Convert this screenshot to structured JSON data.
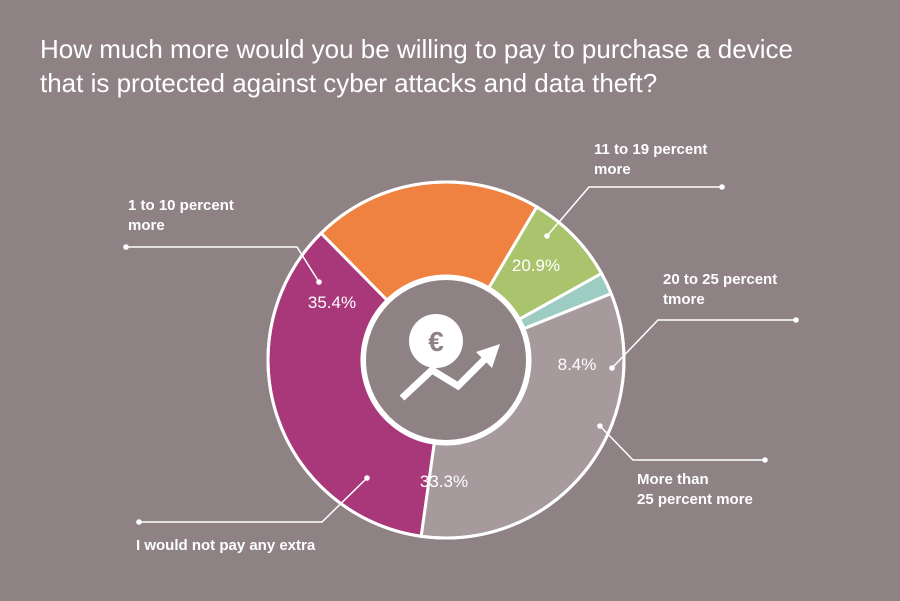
{
  "title_lines": [
    "How much more would you be willing to pay to purchase a device",
    "that is protected against cyber attacks and data theft?"
  ],
  "center_icon": "euro-growth-icon",
  "center_icon_text": "€",
  "chart_data": {
    "type": "pie",
    "style": "donut",
    "title": "How much more would you be willing to pay to purchase a device that is protected against cyber attacks and data theft?",
    "slices": [
      {
        "label_lines": [
          "1 to 10 percent",
          "more"
        ],
        "value": 35.4,
        "value_label": "35.4%",
        "color": "#a8387a"
      },
      {
        "label_lines": [
          "11 to 19 percent",
          "more"
        ],
        "value": 20.9,
        "value_label": "20.9%",
        "color": "#ef8240"
      },
      {
        "label_lines": [
          "20 to 25 percent",
          "tmore"
        ],
        "value": 8.4,
        "value_label": "8.4%",
        "color": "#a9c46c"
      },
      {
        "label_lines": [
          "More than",
          "25 percent more"
        ],
        "value": 2.0,
        "value_label": "",
        "color": "#9cccc2"
      },
      {
        "label_lines": [
          "I would not pay any extra"
        ],
        "value": 33.3,
        "value_label": "33.3%",
        "color": "#a69a9d"
      }
    ]
  }
}
